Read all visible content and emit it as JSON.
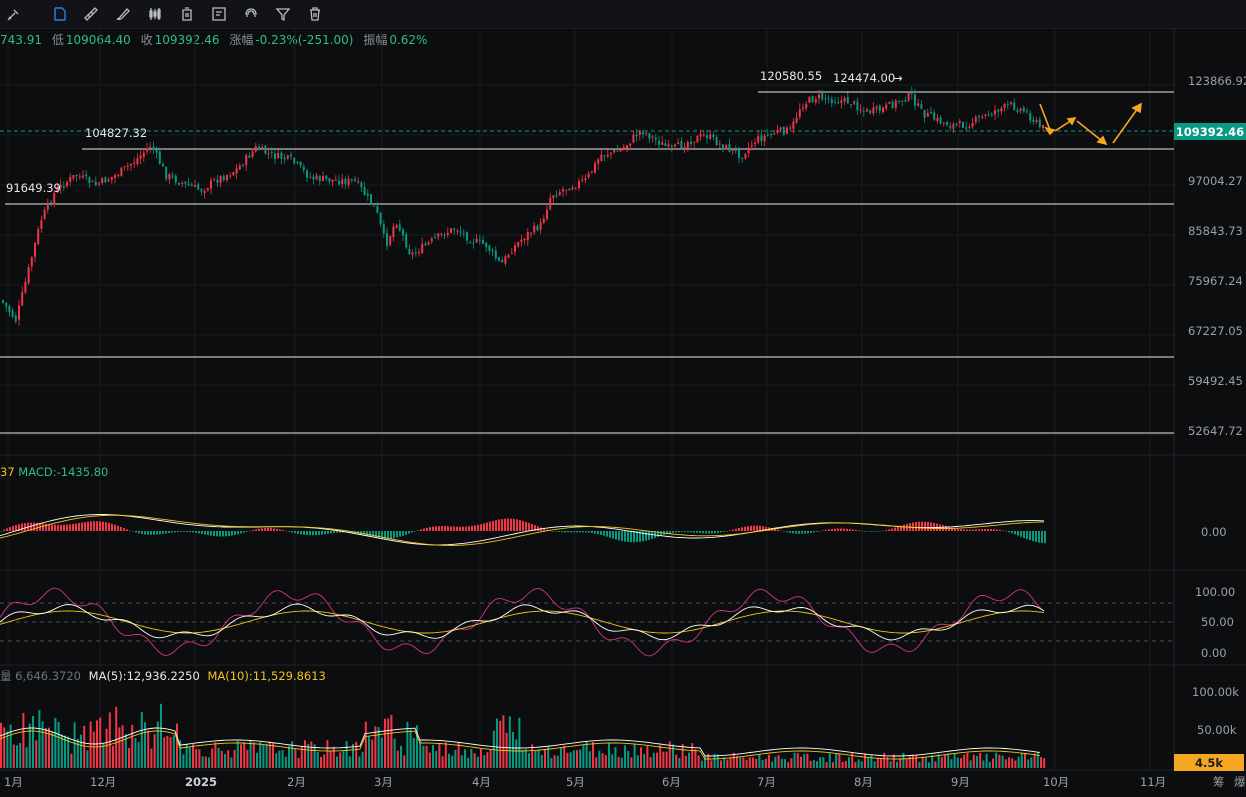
{
  "toolbar": {
    "tools": [
      "pen-tool",
      "layout-tool",
      "ruler-tool",
      "brush-tool",
      "candles-tool",
      "delete-partial-tool",
      "text-note-tool",
      "magnet-tool",
      "filter-tool",
      "trash-tool"
    ]
  },
  "ohlc": {
    "open_partial": "743.91",
    "low_label": "低",
    "low_value": "109064.40",
    "close_label": "收",
    "close_value": "109392.46",
    "change_label": "涨幅",
    "change_value": "-0.23%(-251.00)",
    "amp_label": "振幅",
    "amp_value": "0.62%"
  },
  "price_axis": [
    "123866.92",
    "97004.27",
    "85843.73",
    "75967.24",
    "67227.05",
    "59492.45",
    "52647.72"
  ],
  "current_price": "109392.46",
  "annotations": {
    "high1": "120580.55",
    "high2": "124474.00",
    "level1": "104827.32",
    "level2": "91649.39"
  },
  "macd": {
    "prefix": "37",
    "label": "MACD:-1435.80",
    "zero_label": "0.00"
  },
  "kdj_axis": [
    "100.00",
    "50.00",
    "0.00"
  ],
  "volume": {
    "prefix": "量 6,646.3720",
    "ma5": "MA(5):12,936.2250",
    "ma10": "MA(10):11,529.8613",
    "axis": [
      "100.00k",
      "50.00k"
    ],
    "current_tag": "4.5k"
  },
  "time_axis": [
    "1月",
    "12月",
    "2025",
    "2月",
    "3月",
    "4月",
    "5月",
    "6月",
    "7月",
    "8月",
    "9月",
    "10月",
    "11月",
    "筹",
    "爆"
  ],
  "colors": {
    "up": "#f23645",
    "down": "#089981",
    "accent": "#2f7cf6",
    "arrow": "#f5a623",
    "ma5": "#ffffff",
    "ma10": "#f0c419",
    "kdj_j": "#d63384"
  }
}
